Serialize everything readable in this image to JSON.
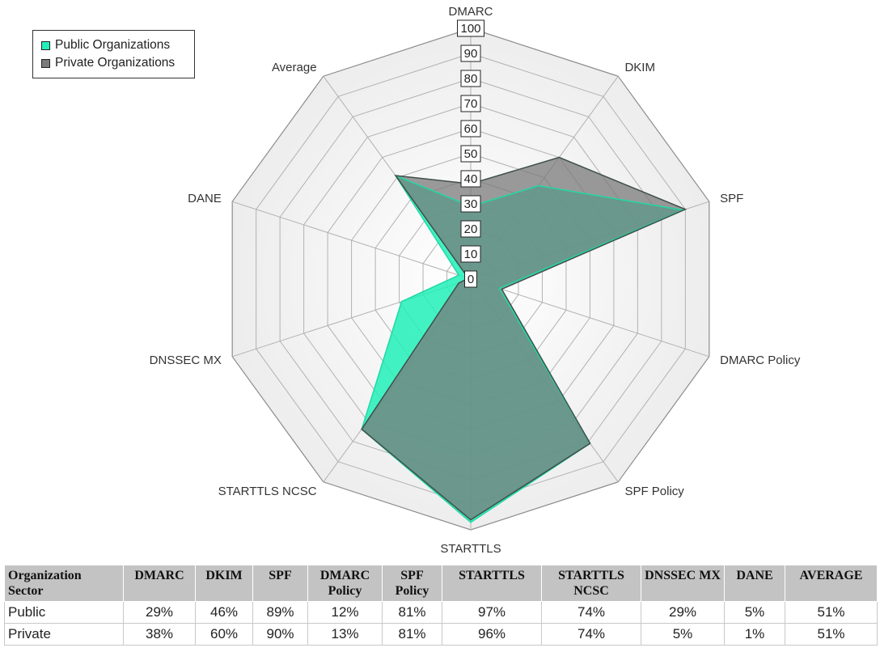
{
  "legend": {
    "public_label": "Public Organizations",
    "private_label": "Private Organizations"
  },
  "chart_data": {
    "type": "radar",
    "axes": [
      "DMARC",
      "DKIM",
      "SPF",
      "DMARC Policy",
      "SPF Policy",
      "STARTTLS",
      "STARTTLS NCSC",
      "DNSSEC MX",
      "DANE",
      "Average"
    ],
    "ticks": [
      "0",
      "10",
      "20",
      "30",
      "40",
      "50",
      "60",
      "70",
      "80",
      "90",
      "100"
    ],
    "rlim": [
      0,
      100
    ],
    "series": [
      {
        "name": "Public Organizations",
        "color": "#21f0b8",
        "values": [
          29,
          46,
          89,
          12,
          81,
          97,
          74,
          29,
          5,
          51
        ]
      },
      {
        "name": "Private Organizations",
        "color": "#7a7a7a",
        "values": [
          38,
          60,
          90,
          13,
          81,
          96,
          74,
          5,
          1,
          51
        ]
      }
    ],
    "overlap_color": "#5aa88c",
    "grid": "on"
  },
  "table": {
    "headers": [
      "Organization Sector",
      "DMARC",
      "DKIM",
      "SPF",
      "DMARC Policy",
      "SPF Policy",
      "STARTTLS",
      "STARTTLS NCSC",
      "DNSSEC MX",
      "DANE",
      "AVERAGE"
    ],
    "rows": [
      {
        "sector": "Public",
        "cells": [
          "29%",
          "46%",
          "89%",
          "12%",
          "81%",
          "97%",
          "74%",
          "29%",
          "5%",
          "51%"
        ]
      },
      {
        "sector": "Private",
        "cells": [
          "38%",
          "60%",
          "90%",
          "13%",
          "81%",
          "96%",
          "74%",
          "5%",
          "1%",
          "51%"
        ]
      }
    ]
  }
}
